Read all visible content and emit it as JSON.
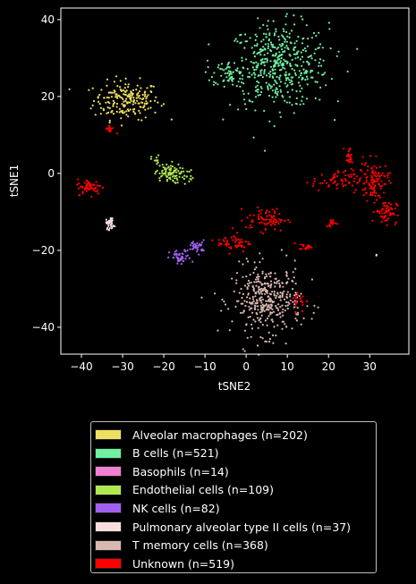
{
  "chart_data": {
    "type": "scatter",
    "xlabel": "tSNE2",
    "ylabel": "tSNE1",
    "xlim": [
      -45,
      39.5
    ],
    "ylim": [
      -47,
      43
    ],
    "xticks": [
      -40,
      -30,
      -20,
      -10,
      0,
      10,
      20,
      30
    ],
    "yticks": [
      -40,
      -20,
      0,
      20,
      40
    ],
    "grid": false,
    "legend_placement": "below",
    "series": [
      {
        "name": "Alveolar macrophages (n=202)",
        "color": "#f0e060",
        "count": 202,
        "clusters": [
          {
            "cx": -29,
            "cy": 19,
            "sx": 4,
            "sy": 2.5,
            "w": 1
          }
        ]
      },
      {
        "name": "B cells (n=521)",
        "color": "#70f0a0",
        "count": 521,
        "clusters": [
          {
            "cx": 8,
            "cy": 28,
            "sx": 6,
            "sy": 5.5,
            "w": 0.9
          },
          {
            "cx": -4,
            "cy": 26,
            "sx": 2,
            "sy": 1.5,
            "w": 0.1
          }
        ]
      },
      {
        "name": "Basophils (n=14)",
        "color": "#f080d0",
        "count": 14,
        "clusters": [
          {
            "cx": 5,
            "cy": -32,
            "sx": 4,
            "sy": 3,
            "w": 1
          }
        ]
      },
      {
        "name": "Endothelial cells (n=109)",
        "color": "#b0e850",
        "count": 109,
        "clusters": [
          {
            "cx": -19,
            "cy": 0,
            "sx": 1.6,
            "sy": 1.3,
            "w": 0.75
          },
          {
            "cx": -14.5,
            "cy": -0.5,
            "sx": 0.8,
            "sy": 1,
            "w": 0.15
          },
          {
            "cx": -22,
            "cy": 3.5,
            "sx": 0.5,
            "sy": 0.6,
            "w": 0.1
          }
        ]
      },
      {
        "name": "NK cells (n=82)",
        "color": "#a060f0",
        "count": 82,
        "clusters": [
          {
            "cx": -16,
            "cy": -22,
            "sx": 1.3,
            "sy": 1,
            "w": 0.55
          },
          {
            "cx": -12,
            "cy": -19,
            "sx": 1,
            "sy": 0.8,
            "w": 0.45
          }
        ]
      },
      {
        "name": "Pulmonary alveolar type II cells (n=37)",
        "color": "#f8dede",
        "count": 37,
        "clusters": [
          {
            "cx": -33,
            "cy": -13,
            "sx": 0.5,
            "sy": 0.8,
            "w": 0.95
          },
          {
            "cx": 31.5,
            "cy": -21,
            "sx": 0.3,
            "sy": 0.2,
            "w": 0.05
          }
        ]
      },
      {
        "name": "T memory cells (n=368)",
        "color": "#d8b8b0",
        "count": 368,
        "clusters": [
          {
            "cx": 5,
            "cy": -33,
            "sx": 4.2,
            "sy": 4.5,
            "w": 1
          }
        ]
      },
      {
        "name": "Unknown (n=519)",
        "color": "#ff0000",
        "count": 519,
        "clusters": [
          {
            "cx": 31,
            "cy": -2,
            "sx": 1.8,
            "sy": 2.5,
            "w": 0.2
          },
          {
            "cx": 34,
            "cy": -10,
            "sx": 1.3,
            "sy": 1.5,
            "w": 0.12
          },
          {
            "cx": 22,
            "cy": -2,
            "sx": 3,
            "sy": 1.3,
            "w": 0.13
          },
          {
            "cx": 25,
            "cy": 4.5,
            "sx": 0.5,
            "sy": 1.2,
            "w": 0.04
          },
          {
            "cx": 5,
            "cy": -12,
            "sx": 2.5,
            "sy": 1.5,
            "w": 0.15
          },
          {
            "cx": -3,
            "cy": -18,
            "sx": 2,
            "sy": 1.2,
            "w": 0.1
          },
          {
            "cx": -38,
            "cy": -3.5,
            "sx": 1.5,
            "sy": 1,
            "w": 0.12
          },
          {
            "cx": -33,
            "cy": 11.5,
            "sx": 0.6,
            "sy": 0.5,
            "w": 0.03
          },
          {
            "cx": 14.5,
            "cy": -19,
            "sx": 0.8,
            "sy": 0.4,
            "w": 0.04
          },
          {
            "cx": 21,
            "cy": -13,
            "sx": 0.8,
            "sy": 0.5,
            "w": 0.03
          },
          {
            "cx": 13,
            "cy": -33,
            "sx": 1,
            "sy": 1.5,
            "w": 0.04
          }
        ]
      }
    ]
  }
}
